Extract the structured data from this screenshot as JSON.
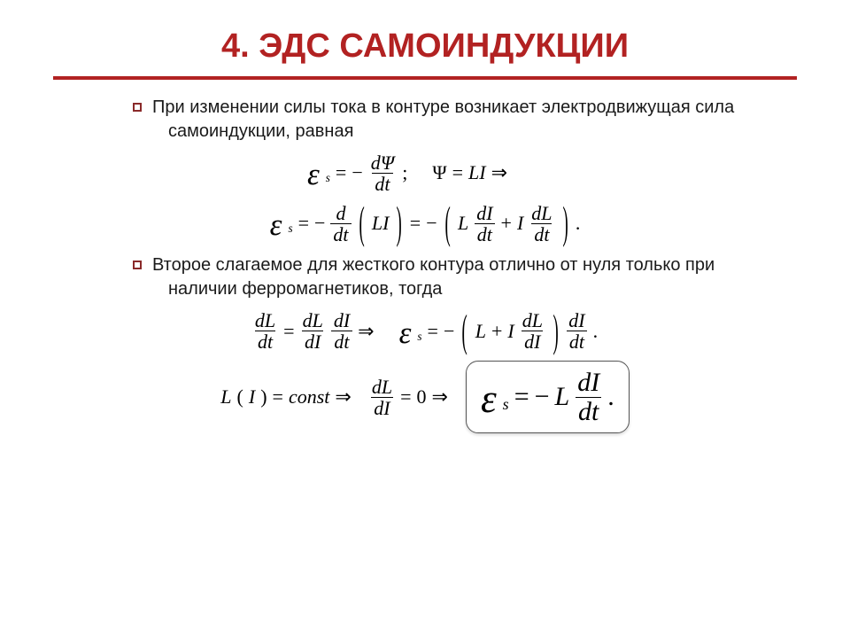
{
  "title": {
    "text": "4. ЭДС САМОИНДУКЦИИ",
    "color": "#b22222",
    "fontsize": 38
  },
  "rule_color": "#b22222",
  "bullet_color": "#8a2a2a",
  "body_fontsize": 20,
  "body_color": "#1a1a1a",
  "eq_fontsize": 22,
  "eq_fontsize_big": 30,
  "para1": "При изменении силы тока в контуре возникает электродвижущая сила самоиндукции, равная",
  "para2": "Второе слагаемое для жесткого контура отлично от нуля только при наличии ферромагнетиков, тогда",
  "sym": {
    "eps": "ε",
    "s": "s",
    "eq": "=",
    "minus": "−",
    "plus": "+",
    "semi": ";",
    "dot": ".",
    "imp": "⇒",
    "Psi": "Ψ",
    "L": "L",
    "I": "I",
    "d": "d",
    "dt": "dt",
    "dI": "dI",
    "dL": "dL",
    "dPsi": "dΨ",
    "zero": "0",
    "const": "const",
    "lp": "(",
    "rp": ")"
  }
}
